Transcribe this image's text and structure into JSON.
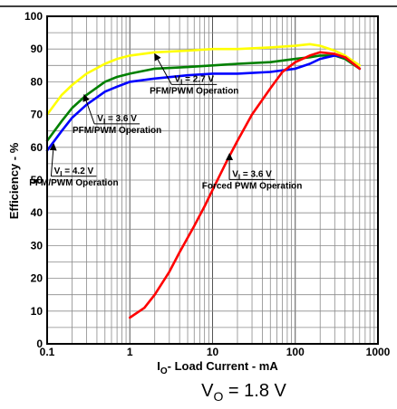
{
  "chart_data": {
    "type": "line",
    "x_scale": "log",
    "xlim": [
      0.1,
      1000
    ],
    "ylim": [
      0,
      100
    ],
    "grid": true,
    "legend": "none",
    "xlabel": {
      "main": "I",
      "sub": "O",
      "rest": "- Load Current - mA"
    },
    "ylabel": "Efficiency - %",
    "x_ticks": [
      {
        "value": 0.1,
        "label": "0.1"
      },
      {
        "value": 1,
        "label": "1"
      },
      {
        "value": 10,
        "label": "10"
      },
      {
        "value": 100,
        "label": "100"
      },
      {
        "value": 1000,
        "label": "1000"
      }
    ],
    "y_ticks": [
      {
        "value": 0,
        "label": "0"
      },
      {
        "value": 10,
        "label": "10"
      },
      {
        "value": 20,
        "label": "20"
      },
      {
        "value": 30,
        "label": "30"
      },
      {
        "value": 40,
        "label": "40"
      },
      {
        "value": 50,
        "label": "50"
      },
      {
        "value": 60,
        "label": "60"
      },
      {
        "value": 70,
        "label": "70"
      },
      {
        "value": 80,
        "label": "80"
      },
      {
        "value": 90,
        "label": "90"
      },
      {
        "value": 100,
        "label": "100"
      }
    ],
    "series": [
      {
        "color": "#ffff00",
        "x": [
          0.1,
          0.15,
          0.2,
          0.3,
          0.5,
          0.7,
          1,
          2,
          5,
          10,
          20,
          50,
          100,
          150,
          200,
          300,
          400,
          600
        ],
        "y": [
          70,
          76,
          79,
          82.5,
          85.5,
          87,
          88,
          89,
          89.5,
          90,
          90,
          90.5,
          91,
          91.5,
          91,
          89.5,
          88,
          85
        ]
      },
      {
        "color": "#008000",
        "x": [
          0.1,
          0.15,
          0.2,
          0.3,
          0.5,
          0.7,
          1,
          2,
          5,
          10,
          20,
          50,
          100,
          150,
          200,
          300,
          400,
          600
        ],
        "y": [
          62,
          68,
          72,
          76,
          80,
          81.5,
          82.5,
          84,
          84.5,
          85,
          85.5,
          86,
          87,
          87.5,
          88,
          88,
          87,
          84
        ]
      },
      {
        "color": "#0000ff",
        "x": [
          0.1,
          0.15,
          0.2,
          0.3,
          0.5,
          0.7,
          1,
          2,
          5,
          10,
          20,
          50,
          100,
          150,
          200,
          300,
          400,
          600
        ],
        "y": [
          59,
          65,
          69,
          73,
          77,
          78.5,
          80,
          81,
          82,
          82.5,
          82.5,
          83,
          84,
          85.5,
          87,
          88,
          87.5,
          84
        ]
      },
      {
        "color": "#ff0000",
        "x": [
          1,
          1.5,
          2,
          3,
          4,
          6,
          8,
          10,
          15,
          20,
          30,
          50,
          70,
          100,
          150,
          200,
          300,
          400,
          600
        ],
        "y": [
          8,
          11,
          15,
          22,
          28,
          36,
          42,
          47,
          56,
          62,
          70,
          78,
          83,
          86,
          88,
          89,
          88.5,
          87.5,
          84
        ]
      }
    ],
    "annotations": [
      {
        "id": "vi-2.7",
        "v_main": "V",
        "v_sub": "I",
        "v_rest": " = 2.7 V",
        "line2": "PFM/PWM Operation",
        "from": [
          2,
          88.5
        ],
        "label_at": [
          6,
          80
        ]
      },
      {
        "id": "vi-3.6",
        "v_main": "V",
        "v_sub": "I",
        "v_rest": " = 3.6 V",
        "line2": "PFM/PWM Operation",
        "from": [
          0.28,
          76
        ],
        "label_at": [
          0.7,
          68
        ]
      },
      {
        "id": "vi-4.2",
        "v_main": "V",
        "v_sub": "I",
        "v_rest": " = 4.2 V",
        "line2": "PFM/PWM Operation",
        "from": [
          0.12,
          61
        ],
        "label_at": [
          0.21,
          52
        ]
      },
      {
        "id": "vi-3.6-forced",
        "v_main": "V",
        "v_sub": "I",
        "v_rest": " = 3.6 V",
        "line2": "Forced PWM Operation",
        "from": [
          16,
          58
        ],
        "label_at": [
          30,
          51
        ]
      }
    ]
  },
  "caption": {
    "main": "V",
    "sub": "O",
    "rest": " = 1.8 V"
  }
}
